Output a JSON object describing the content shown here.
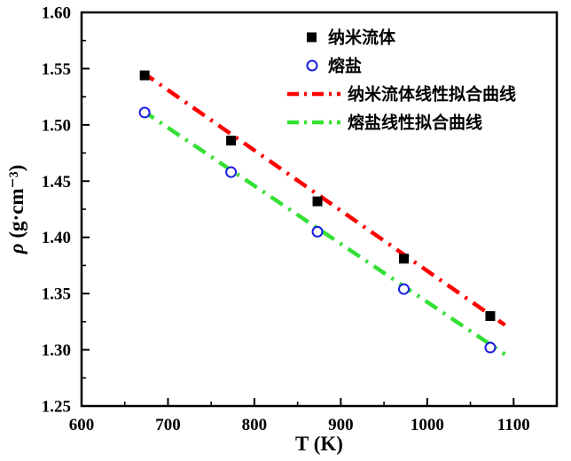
{
  "page": {
    "background": "#ffffff"
  },
  "chart_data": {
    "type": "scatter",
    "title": "",
    "xlabel": "T (K)",
    "ylabel": "ρ (g·cm⁻³)",
    "xlim": [
      600,
      1150
    ],
    "ylim": [
      1.25,
      1.6
    ],
    "x_ticks": [
      600,
      700,
      800,
      900,
      1000,
      1100
    ],
    "x_minor_ticks": [
      650,
      750,
      850,
      950,
      1050
    ],
    "y_ticks": [
      "1.25",
      "1.30",
      "1.35",
      "1.40",
      "1.45",
      "1.50",
      "1.55",
      "1.60"
    ],
    "y_minor_ticks": [
      1.275,
      1.325,
      1.375,
      1.425,
      1.475,
      1.525,
      1.575
    ],
    "grid": false,
    "legend_position": "inside-top-right",
    "frame_color": "#000000",
    "series": [
      {
        "name": "纳米流体",
        "kind": "scatter",
        "marker": "square-filled",
        "color": "#000000",
        "x": [
          673,
          773,
          873,
          973,
          1073
        ],
        "y": [
          1.544,
          1.486,
          1.432,
          1.381,
          1.33
        ]
      },
      {
        "name": "熔盐",
        "kind": "scatter",
        "marker": "circle-open",
        "color": "#1a1ae0",
        "x": [
          673,
          773,
          873,
          973,
          1073
        ],
        "y": [
          1.511,
          1.458,
          1.405,
          1.354,
          1.302
        ]
      },
      {
        "name": "纳米流体线性拟合曲线",
        "kind": "line",
        "style": "dash-dot",
        "color": "#ff0000",
        "x": [
          670,
          1090
        ],
        "y": [
          1.547,
          1.322
        ]
      },
      {
        "name": "熔盐线性拟合曲线",
        "kind": "line",
        "style": "dash-dot",
        "color": "#35e035",
        "x": [
          670,
          1090
        ],
        "y": [
          1.513,
          1.296
        ]
      }
    ]
  }
}
